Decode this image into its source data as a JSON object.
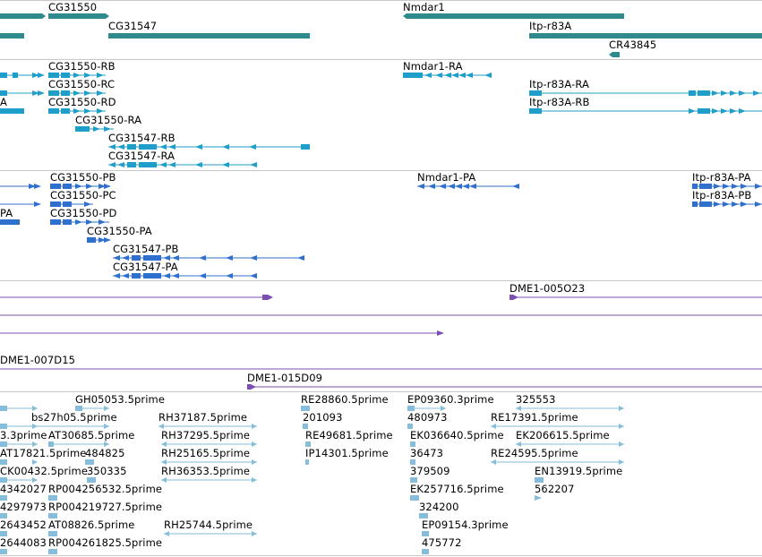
{
  "colors": {
    "gene": "#2e8a8c",
    "transcript": "#1e9ec8",
    "protein": "#2f6fce",
    "clone": "#7a4fb0",
    "est": "#86bddb",
    "separator": "#c8c8c8"
  },
  "gene_track": {
    "labels": [
      "CG31550",
      "Nmdar1",
      "CG31547",
      "Itp-r83A",
      "CR43845"
    ]
  },
  "transcript_track": {
    "labels": [
      "CG31550-RB",
      "Nmdar1-RA",
      "CG31550-RC",
      "Itp-r83A-RA",
      "A",
      "CG31550-RD",
      "Itp-r83A-RB",
      "CG31550-RA",
      "CG31547-RB",
      "CG31547-RA"
    ]
  },
  "protein_track": {
    "labels": [
      "CG31550-PB",
      "Nmdar1-PA",
      "Itp-r83A-PA",
      "CG31550-PC",
      "Itp-r83A-PB",
      "PA",
      "CG31550-PD",
      "CG31550-PA",
      "CG31547-PB",
      "CG31547-PA"
    ]
  },
  "clone_track": {
    "labels": [
      "DME1-005O23",
      "DME1-007D15",
      "DME1-015D09"
    ]
  },
  "est_track": {
    "labels": [
      "GH05053.5prime",
      "RE28860.5prime",
      "EP09360.3prime",
      "325553",
      "bs27h05.5prime",
      "RH37187.5prime",
      "201093",
      "480973",
      "RE17391.5prime",
      "3.3prime",
      "AT30685.5prime",
      "RH37295.5prime",
      "RE49681.5prime",
      "EK036640.5prime",
      "EK206615.5prime",
      "AT17821.5prime",
      "484825",
      "RH25165.5prime",
      "IP14301.5prime",
      "36473",
      "RE24595.5prime",
      "CK00432.5prime",
      "350335",
      "RH36353.5prime",
      "379509",
      "EN13919.5prime",
      "4342027",
      "RP004256532.5prime",
      "EK257716.5prime",
      "562207",
      "4297973",
      "RP004219727.5prime",
      "324200",
      "2643452",
      "AT08826.5prime",
      "RH25744.5prime",
      "EP09154.3prime",
      "2644083",
      "RP004261825.5prime",
      "475772"
    ]
  }
}
